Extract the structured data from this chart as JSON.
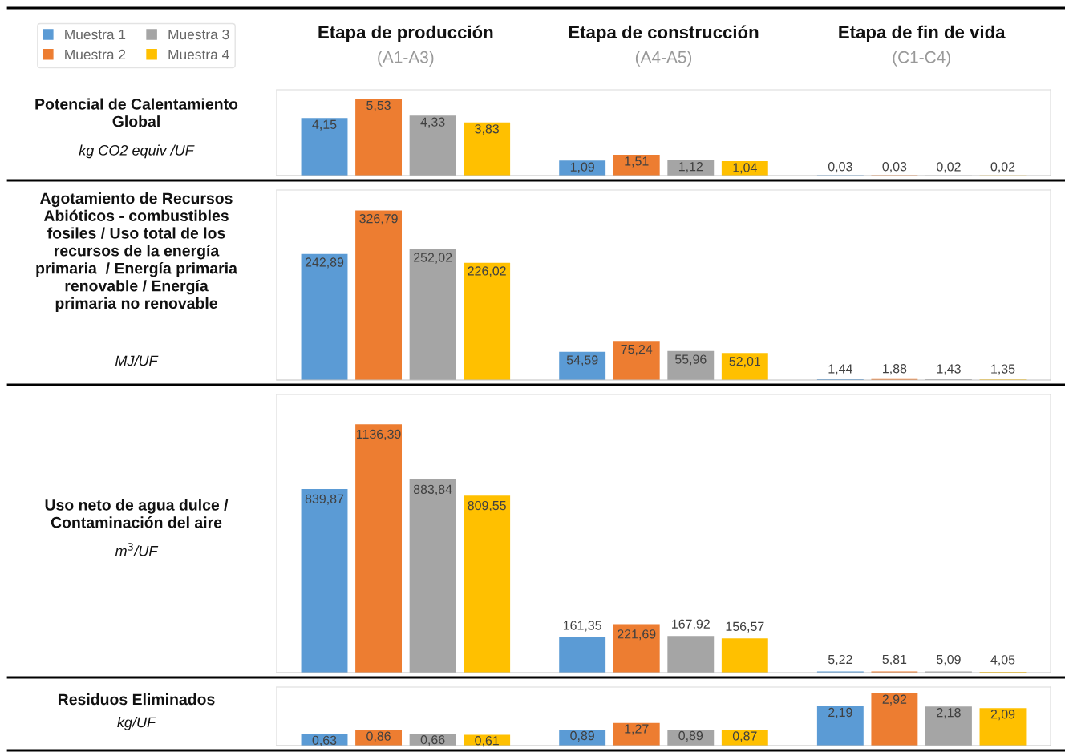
{
  "chart_data": [
    {
      "type": "bar",
      "title": "Potencial de Calentamiento\nGlobal",
      "ylabel": "kg CO2 equiv /UF",
      "categories": [
        "Etapa de producción\n(A1-A3)",
        "Etapa de construcción\n(A4-A5)",
        "Etapa de fin de vida\n(C1-C4)"
      ],
      "tick_labels": "x",
      "legend": "top left",
      "series": [
        {
          "name": "Muestra 1",
          "color": "#5b9bd5",
          "values": [
            4.15,
            1.09,
            0.03
          ],
          "value_labels": [
            "4,15",
            "1,09",
            "0,03"
          ]
        },
        {
          "name": "Muestra 2",
          "color": "#ed7d31",
          "values": [
            5.53,
            1.51,
            0.03
          ],
          "value_labels": [
            "5,53",
            "1,51",
            "0,03"
          ]
        },
        {
          "name": "Muestra 3",
          "color": "#a5a5a5",
          "values": [
            4.33,
            1.12,
            0.02
          ],
          "value_labels": [
            "4,33",
            "1,12",
            "0,02"
          ]
        },
        {
          "name": "Muestra 4",
          "color": "#ffc000",
          "values": [
            3.83,
            1.04,
            0.02
          ],
          "value_labels": [
            "3,83",
            "1,04",
            "0,02"
          ]
        }
      ]
    },
    {
      "type": "bar",
      "title": "Agotamiento de Recursos\nAbióticos - combustibles\nfosiles / Uso total de los\nrecursos de la energía\nprimaria  / Energía primaria\nrenovable / Energía\nprimaria no renovable",
      "ylabel": "MJ/UF",
      "categories": [
        null,
        null,
        null
      ],
      "series": [
        {
          "color": "#5b9bd5",
          "values": [
            242.89,
            54.59,
            1.44
          ],
          "value_labels": [
            "242,89",
            "54,59",
            "1,44"
          ]
        },
        {
          "color": "#ed7d31",
          "values": [
            326.79,
            75.24,
            1.88
          ],
          "value_labels": [
            "326,79",
            "75,24",
            "1,88"
          ]
        },
        {
          "color": "#a5a5a5",
          "values": [
            252.02,
            55.96,
            1.43
          ],
          "value_labels": [
            "252,02",
            "55,96",
            "1,43"
          ]
        },
        {
          "color": "#ffc000",
          "values": [
            226.02,
            52.01,
            1.35
          ],
          "value_labels": [
            "226,02",
            "52,01",
            "1,35"
          ]
        }
      ]
    },
    {
      "type": "bar",
      "title": "Uso neto de agua dulce /\nContaminación del aire",
      "ylabel": "m$^{3}$/UF",
      "categories": [
        null,
        null,
        null
      ],
      "series": [
        {
          "color": "#5b9bd5",
          "values": [
            839.87,
            161.35,
            5.22
          ],
          "value_labels": [
            "839,87",
            "161,35",
            "5,22"
          ]
        },
        {
          "color": "#ed7d31",
          "values": [
            1136.39,
            221.69,
            5.81
          ],
          "value_labels": [
            "1136,39",
            "221,69",
            "5,81"
          ]
        },
        {
          "color": "#a5a5a5",
          "values": [
            883.84,
            167.92,
            5.09
          ],
          "value_labels": [
            "883,84",
            "167,92",
            "5,09"
          ]
        },
        {
          "color": "#ffc000",
          "values": [
            809.55,
            156.57,
            4.05
          ],
          "value_labels": [
            "809,55",
            "156,57",
            "4,05"
          ]
        }
      ]
    },
    {
      "type": "bar",
      "title": "Residuos Eliminados",
      "ylabel": "kg/UF",
      "categories": [
        null,
        null,
        null
      ],
      "series": [
        {
          "color": "#5b9bd5",
          "values": [
            0.63,
            0.89,
            2.19
          ],
          "value_labels": [
            "0,63",
            "0,89",
            "2,19"
          ]
        },
        {
          "color": "#ed7d31",
          "values": [
            0.86,
            1.27,
            2.92
          ],
          "value_labels": [
            "0,86",
            "1,27",
            "2,92"
          ]
        },
        {
          "color": "#a5a5a5",
          "values": [
            0.66,
            0.89,
            2.18
          ],
          "value_labels": [
            "0,66",
            "0,89",
            "2,18"
          ]
        },
        {
          "color": "#ffc000",
          "values": [
            0.61,
            0.87,
            2.09
          ],
          "value_labels": [
            "0,61",
            "0,87",
            "2,09"
          ]
        }
      ]
    }
  ]
}
